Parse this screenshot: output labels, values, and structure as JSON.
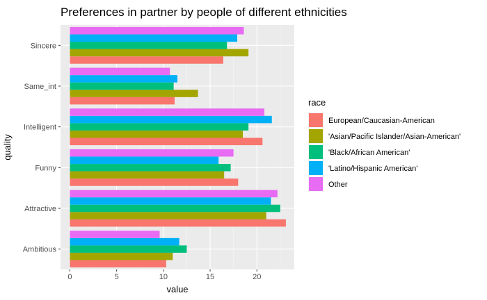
{
  "chart_data": {
    "type": "bar",
    "orientation": "horizontal",
    "title": "Preferences in partner by people of different ethnicities",
    "xlabel": "value",
    "ylabel": "quality",
    "xlim": [
      -1,
      24
    ],
    "xticks": [
      0,
      5,
      10,
      15,
      20
    ],
    "grid": true,
    "legend_title": "race",
    "legend_position": "right",
    "categories": [
      "Ambitious",
      "Attractive",
      "Funny",
      "Intelligent",
      "Same_int",
      "Sincere"
    ],
    "series": [
      {
        "name": "European/Caucasian-American",
        "color": "#F8766D",
        "values": [
          10.3,
          23.1,
          18.0,
          20.6,
          11.2,
          16.4
        ]
      },
      {
        "name": "'Asian/Pacific Islander/Asian-American'",
        "color": "#A3A500",
        "values": [
          11.0,
          21.0,
          16.5,
          18.5,
          13.7,
          19.1
        ]
      },
      {
        "name": "'Black/African American'",
        "color": "#00BF7D",
        "values": [
          12.5,
          22.5,
          17.2,
          19.1,
          11.1,
          16.8
        ]
      },
      {
        "name": "'Latino/Hispanic American'",
        "color": "#00B0F6",
        "values": [
          11.7,
          21.5,
          15.9,
          21.6,
          11.5,
          17.9
        ]
      },
      {
        "name": "Other",
        "color": "#E76BF3",
        "values": [
          9.6,
          22.2,
          17.5,
          20.8,
          10.7,
          18.6
        ]
      }
    ]
  }
}
